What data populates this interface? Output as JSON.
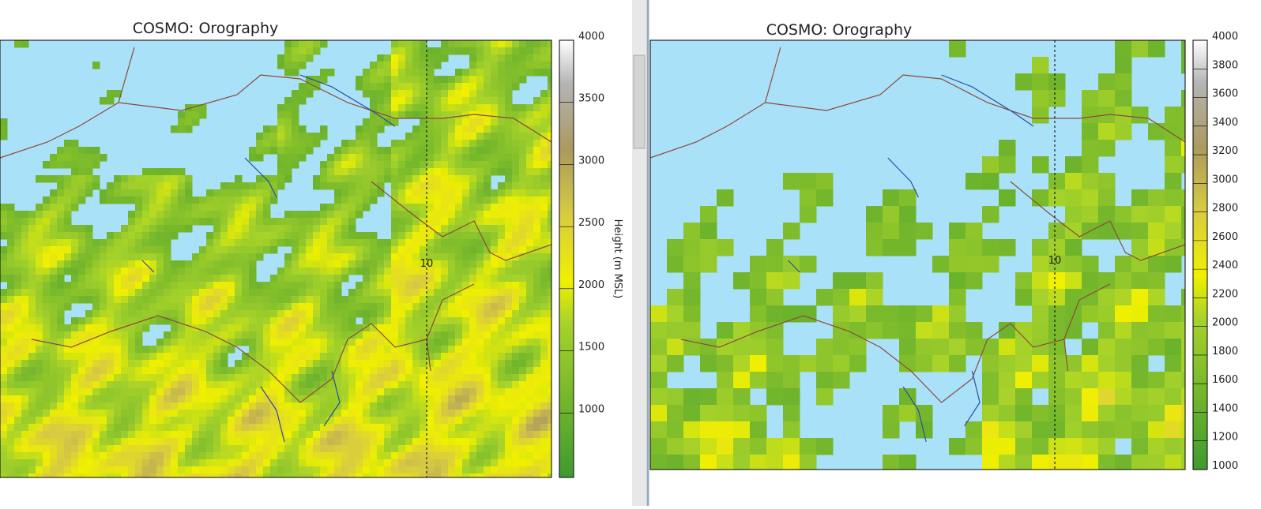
{
  "panels": [
    {
      "title": "COSMO: Orography",
      "meridian_label": "10",
      "colorbar_label": "Height (m MSL)",
      "colorbar_ticks": [
        4000,
        3500,
        3000,
        2500,
        2000,
        1500,
        1000
      ]
    },
    {
      "title": "COSMO: Orography",
      "meridian_label": "10",
      "colorbar_ticks": [
        4000,
        3800,
        3600,
        3400,
        3200,
        3000,
        2800,
        2600,
        2400,
        2200,
        2000,
        1800,
        1600,
        1400,
        1200,
        1000
      ]
    }
  ]
}
